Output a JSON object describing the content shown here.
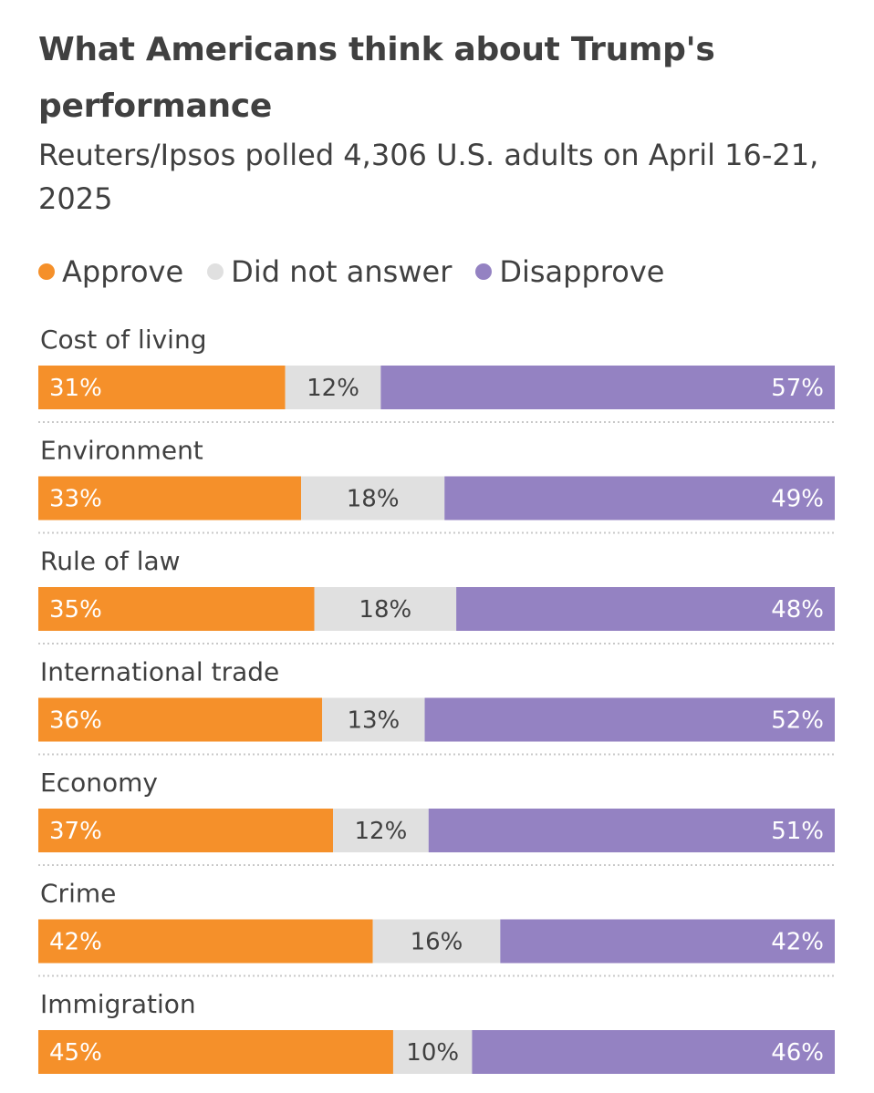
{
  "header": {
    "title": "What Americans think about Trump's performance",
    "subtitle": "Reuters/Ipsos polled 4,306 U.S. adults on April 16-21, 2025"
  },
  "legend": [
    {
      "label": "Approve",
      "color": "#f5902a"
    },
    {
      "label": "Did not answer",
      "color": "#e0e0e0"
    },
    {
      "label": "Disapprove",
      "color": "#9482c2"
    }
  ],
  "chart_data": {
    "type": "bar",
    "orientation": "horizontal",
    "stacked": true,
    "normalized": true,
    "title": "What Americans think about Trump's performance",
    "subtitle": "Reuters/Ipsos polled 4,306 U.S. adults on April 16-21, 2025",
    "categories": [
      "Cost of living",
      "Environment",
      "Rule of law",
      "International trade",
      "Economy",
      "Crime",
      "Immigration"
    ],
    "series": [
      {
        "name": "Approve",
        "color": "#f5902a",
        "text_color": "#ffffff",
        "values": [
          31,
          33,
          35,
          36,
          37,
          42,
          45
        ],
        "labels": [
          "31%",
          "33%",
          "35%",
          "36%",
          "37%",
          "42%",
          "45%"
        ],
        "align": "start"
      },
      {
        "name": "Did not answer",
        "color": "#e0e0e0",
        "text_color": "#404040",
        "values": [
          12,
          18,
          18,
          13,
          12,
          16,
          10
        ],
        "labels": [
          "12%",
          "18%",
          "18%",
          "13%",
          "12%",
          "16%",
          "10%"
        ],
        "align": "middle"
      },
      {
        "name": "Disapprove",
        "color": "#9482c2",
        "text_color": "#ffffff",
        "values": [
          57,
          49,
          48,
          52,
          51,
          42,
          46
        ],
        "labels": [
          "57%",
          "49%",
          "48%",
          "52%",
          "51%",
          "42%",
          "46%"
        ],
        "align": "end"
      }
    ],
    "legend_position": "top-left"
  }
}
